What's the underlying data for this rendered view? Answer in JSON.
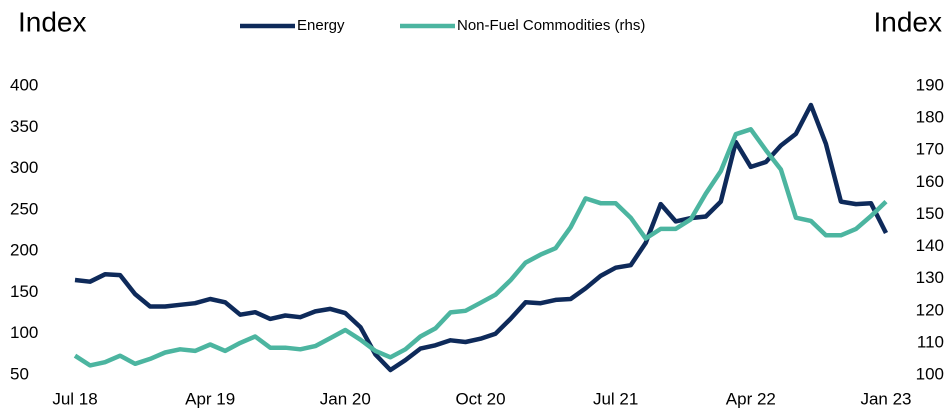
{
  "chart_data": {
    "type": "line",
    "y_label": "Index",
    "y2_label": "Index",
    "categories": [
      "Jul 18",
      null,
      null,
      null,
      null,
      null,
      null,
      null,
      null,
      "Apr 19",
      null,
      null,
      null,
      null,
      null,
      null,
      null,
      null,
      "Jan 20",
      null,
      null,
      null,
      null,
      null,
      null,
      null,
      null,
      "Oct 20",
      null,
      null,
      null,
      null,
      null,
      null,
      null,
      null,
      "Jul 21",
      null,
      null,
      null,
      null,
      null,
      null,
      null,
      null,
      "Apr 22",
      null,
      null,
      null,
      null,
      null,
      null,
      null,
      null,
      "Jan 23"
    ],
    "series": [
      {
        "name": "Energy",
        "color": "#0e2a5a",
        "values": [
          165,
          163,
          172,
          171,
          148,
          133,
          133,
          135,
          137,
          142,
          138,
          123,
          126,
          118,
          122,
          120,
          127,
          130,
          125,
          108,
          75,
          56,
          68,
          82,
          86,
          92,
          90,
          94,
          100,
          118,
          138,
          137,
          141,
          142,
          155,
          170,
          180,
          183,
          210,
          257,
          236,
          240,
          242,
          260,
          332,
          302,
          308,
          328,
          342,
          377,
          330,
          260,
          257,
          258,
          222
        ]
      },
      {
        "name": "Non-Fuel Commodities (rhs)",
        "color": "#4cb5a0",
        "axis": "y2",
        "values": [
          106,
          103,
          104,
          106,
          103.5,
          105,
          107,
          108,
          107.5,
          109.5,
          107.5,
          110,
          112,
          108.5,
          108.5,
          108,
          109,
          111.5,
          114,
          111,
          107.5,
          105.5,
          108,
          112,
          114.5,
          119.5,
          120,
          122.5,
          125,
          129.5,
          135,
          137.5,
          139.5,
          146,
          155,
          153.5,
          153.5,
          149,
          142.5,
          145.5,
          145.5,
          148.5,
          156.5,
          163.5,
          175,
          176.5,
          170,
          164,
          149,
          148,
          143.5,
          143.5,
          145.5,
          149.5,
          154
        ]
      }
    ],
    "ylim": [
      50,
      400
    ],
    "yticks": [
      50,
      100,
      150,
      200,
      250,
      300,
      350,
      400
    ],
    "y2lim": [
      100,
      190
    ],
    "y2ticks": [
      100,
      110,
      120,
      130,
      140,
      150,
      160,
      170,
      180,
      190
    ]
  }
}
